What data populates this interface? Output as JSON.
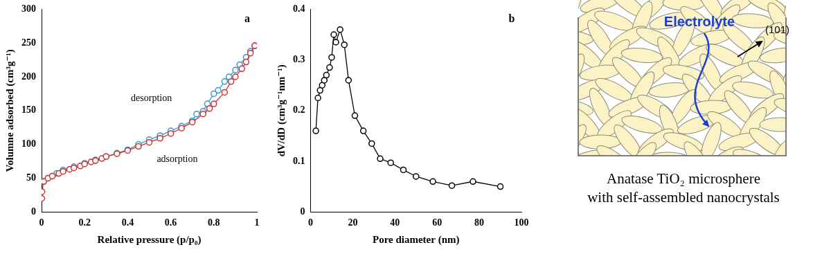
{
  "chart_data": [
    {
      "type": "line",
      "annotations": [
        "a"
      ],
      "x_label": "Relative pressure (p/p₀)",
      "y_label": "Volumne adsorbed (cm³g⁻¹)",
      "xlim": [
        0,
        1
      ],
      "xticks": [
        0,
        0.2,
        0.4,
        0.6,
        0.8,
        1
      ],
      "ylim": [
        0,
        300
      ],
      "yticks": [
        0,
        50,
        100,
        150,
        200,
        250,
        300
      ],
      "grid": false,
      "series": [
        {
          "name": "adsorption",
          "color": "#cc3333",
          "marker": "circle",
          "x": [
            0.001,
            0.002,
            0.01,
            0.03,
            0.05,
            0.08,
            0.1,
            0.13,
            0.15,
            0.18,
            0.2,
            0.23,
            0.25,
            0.28,
            0.3,
            0.35,
            0.4,
            0.45,
            0.5,
            0.55,
            0.6,
            0.65,
            0.7,
            0.75,
            0.78,
            0.8,
            0.85,
            0.88,
            0.9,
            0.93,
            0.95,
            0.97,
            0.99
          ],
          "values": [
            20,
            30,
            45,
            50,
            53,
            57,
            60,
            63,
            65,
            68,
            71,
            74,
            76,
            79,
            82,
            86,
            91,
            97,
            103,
            109,
            116,
            124,
            133,
            145,
            153,
            160,
            177,
            193,
            200,
            212,
            222,
            235,
            246
          ]
        },
        {
          "name": "desorption",
          "color": "#3399cc",
          "marker": "circle",
          "x": [
            0.99,
            0.97,
            0.95,
            0.92,
            0.9,
            0.87,
            0.85,
            0.82,
            0.8,
            0.77,
            0.75,
            0.72,
            0.7,
            0.65,
            0.6,
            0.55,
            0.5,
            0.45,
            0.4,
            0.35,
            0.3,
            0.25,
            0.2,
            0.15,
            0.1,
            0.07,
            0.05,
            0.03,
            0.01
          ],
          "values": [
            246,
            238,
            229,
            218,
            210,
            200,
            193,
            180,
            175,
            160,
            149,
            145,
            135,
            127,
            120,
            113,
            107,
            100,
            92,
            87,
            82,
            77,
            72,
            67,
            62,
            57,
            53,
            50,
            45
          ]
        }
      ]
    },
    {
      "type": "line",
      "annotations": [
        "b"
      ],
      "x_label": "Pore diameter (nm)",
      "y_label": "dV/dD (cm³g⁻¹nm⁻¹)",
      "xlim": [
        0,
        100
      ],
      "xticks": [
        0,
        20,
        40,
        60,
        80,
        100
      ],
      "ylim": [
        0,
        0.4
      ],
      "yticks": [
        0,
        0.1,
        0.2,
        0.3,
        0.4
      ],
      "grid": false,
      "color": "#000000",
      "marker": "circle",
      "x": [
        2.5,
        3.5,
        4.5,
        5.5,
        6.5,
        7.5,
        9,
        10,
        11,
        12,
        14,
        16,
        18,
        21,
        25,
        29,
        33,
        38,
        44,
        50,
        58,
        67,
        77,
        90
      ],
      "values": [
        0.16,
        0.225,
        0.24,
        0.25,
        0.26,
        0.27,
        0.285,
        0.305,
        0.35,
        0.335,
        0.36,
        0.33,
        0.26,
        0.19,
        0.16,
        0.135,
        0.105,
        0.097,
        0.083,
        0.07,
        0.06,
        0.052,
        0.06,
        0.05
      ]
    }
  ],
  "diagram": {
    "arrow_label": "Electrolyte",
    "facet_label": "(101)",
    "caption": [
      "Anatase TiO₂ microsphere",
      "with self-assembled nanocrystals"
    ]
  }
}
